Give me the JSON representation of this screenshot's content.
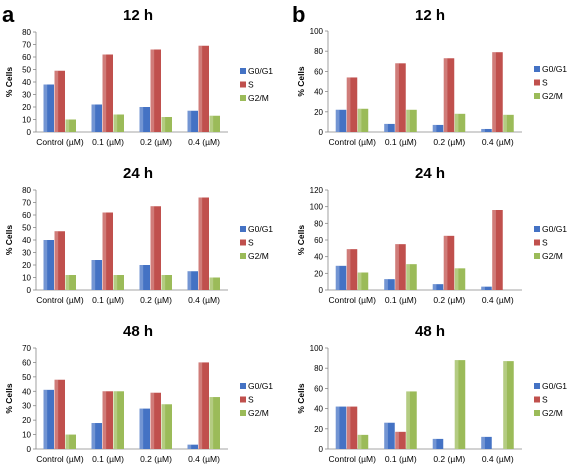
{
  "panels": [
    "a",
    "b"
  ],
  "chart_data": [
    {
      "type": "bar",
      "panel": "a",
      "title": "12 h",
      "ylabel": "% Cells",
      "ylim": [
        0,
        80
      ],
      "yticks": [
        0,
        10,
        20,
        30,
        40,
        50,
        60,
        70,
        80
      ],
      "categories": [
        "Control (µM)",
        "0.1 (µM)",
        "0.2 (µM)",
        "0.4 (µM)"
      ],
      "series": [
        {
          "name": "G0/G1",
          "color": "#4472c4",
          "values": [
            38,
            22,
            20,
            17
          ]
        },
        {
          "name": "S",
          "color": "#c0504d",
          "values": [
            49,
            62,
            66,
            69
          ]
        },
        {
          "name": "G2/M",
          "color": "#9bbb59",
          "values": [
            10,
            14,
            12,
            13
          ]
        }
      ],
      "legend": "right"
    },
    {
      "type": "bar",
      "panel": "b",
      "title": "12 h",
      "ylabel": "% Cells",
      "ylim": [
        0,
        100
      ],
      "yticks": [
        0,
        20,
        40,
        60,
        80,
        100
      ],
      "categories": [
        "Control (µM)",
        "0.1 (µM)",
        "0.2 (µM)",
        "0.4 (µM)"
      ],
      "series": [
        {
          "name": "G0/G1",
          "color": "#4472c4",
          "values": [
            22,
            8,
            7,
            3
          ]
        },
        {
          "name": "S",
          "color": "#c0504d",
          "values": [
            54,
            68,
            73,
            79
          ]
        },
        {
          "name": "G2/M",
          "color": "#9bbb59",
          "values": [
            23,
            22,
            18,
            17
          ]
        }
      ],
      "legend": "right"
    },
    {
      "type": "bar",
      "panel": "a",
      "title": "24 h",
      "ylabel": "% Cells",
      "ylim": [
        0,
        80
      ],
      "yticks": [
        0,
        10,
        20,
        30,
        40,
        50,
        60,
        70,
        80
      ],
      "categories": [
        "Control (µM)",
        "0.1 (µM)",
        "0.2 (µM)",
        "0.4 (µM)"
      ],
      "series": [
        {
          "name": "G0/G1",
          "color": "#4472c4",
          "values": [
            40,
            24,
            20,
            15
          ]
        },
        {
          "name": "S",
          "color": "#c0504d",
          "values": [
            47,
            62,
            67,
            74
          ]
        },
        {
          "name": "G2/M",
          "color": "#9bbb59",
          "values": [
            12,
            12,
            12,
            10
          ]
        }
      ],
      "legend": "right"
    },
    {
      "type": "bar",
      "panel": "b",
      "title": "24 h",
      "ylabel": "% Cells",
      "ylim": [
        0,
        120
      ],
      "yticks": [
        0,
        20,
        40,
        60,
        80,
        100,
        120
      ],
      "categories": [
        "Control (µM)",
        "0.1 (µM)",
        "0.2 (µM)",
        "0.4 (µM)"
      ],
      "series": [
        {
          "name": "G0/G1",
          "color": "#4472c4",
          "values": [
            29,
            13,
            7,
            4
          ]
        },
        {
          "name": "S",
          "color": "#c0504d",
          "values": [
            49,
            55,
            65,
            96
          ]
        },
        {
          "name": "G2/M",
          "color": "#9bbb59",
          "values": [
            21,
            31,
            26,
            0
          ]
        }
      ],
      "legend": "right"
    },
    {
      "type": "bar",
      "panel": "a",
      "title": "48 h",
      "ylabel": "% Cells",
      "ylim": [
        0,
        70
      ],
      "yticks": [
        0,
        10,
        20,
        30,
        40,
        50,
        60,
        70
      ],
      "categories": [
        "Control (µM)",
        "0.1 (µM)",
        "0.2 (µM)",
        "0.4 (µM)"
      ],
      "series": [
        {
          "name": "G0/G1",
          "color": "#4472c4",
          "values": [
            41,
            18,
            28,
            3
          ]
        },
        {
          "name": "S",
          "color": "#c0504d",
          "values": [
            48,
            40,
            39,
            60
          ]
        },
        {
          "name": "G2/M",
          "color": "#9bbb59",
          "values": [
            10,
            40,
            31,
            36
          ]
        }
      ],
      "legend": "right"
    },
    {
      "type": "bar",
      "panel": "b",
      "title": "48 h",
      "ylabel": "% Cells",
      "ylim": [
        0,
        100
      ],
      "yticks": [
        0,
        20,
        40,
        60,
        80,
        100
      ],
      "categories": [
        "Control (µM)",
        "0.1 (µM)",
        "0.2 (µM)",
        "0.4 (µM)"
      ],
      "series": [
        {
          "name": "G0/G1",
          "color": "#4472c4",
          "values": [
            42,
            26,
            10,
            12
          ]
        },
        {
          "name": "S",
          "color": "#c0504d",
          "values": [
            42,
            17,
            0,
            0
          ]
        },
        {
          "name": "G2/M",
          "color": "#9bbb59",
          "values": [
            14,
            57,
            88,
            87
          ]
        }
      ],
      "legend": "right"
    }
  ]
}
